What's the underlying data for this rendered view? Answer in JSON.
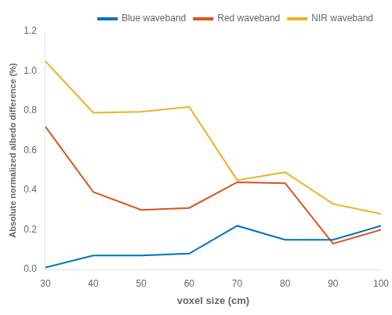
{
  "chart_data": {
    "type": "line",
    "x": [
      30,
      40,
      50,
      60,
      70,
      80,
      90,
      100
    ],
    "series": [
      {
        "name": "Blue waveband",
        "color": "#0072bd",
        "values": [
          0.01,
          0.07,
          0.07,
          0.08,
          0.22,
          0.15,
          0.15,
          0.22
        ]
      },
      {
        "name": "Red waveband",
        "color": "#d95319",
        "values": [
          0.72,
          0.39,
          0.3,
          0.31,
          0.44,
          0.435,
          0.13,
          0.2
        ]
      },
      {
        "name": "NIR waveband",
        "color": "#edb120",
        "values": [
          1.05,
          0.79,
          0.795,
          0.82,
          0.45,
          0.49,
          0.33,
          0.28
        ]
      }
    ],
    "xlabel": "voxel size (cm)",
    "ylabel": "Absolute normalized albedo difference (%)",
    "xlim": [
      30,
      100
    ],
    "ylim": [
      0,
      1.2
    ],
    "xticks": [
      30,
      40,
      50,
      60,
      70,
      80,
      90,
      100
    ],
    "yticks": [
      {
        "value": 0,
        "label": "0.0"
      },
      0.2,
      0.4,
      0.6,
      0.8,
      {
        "value": 1.0,
        "label": "1.0"
      },
      1.2
    ],
    "legend": "upper right",
    "grid": false
  }
}
